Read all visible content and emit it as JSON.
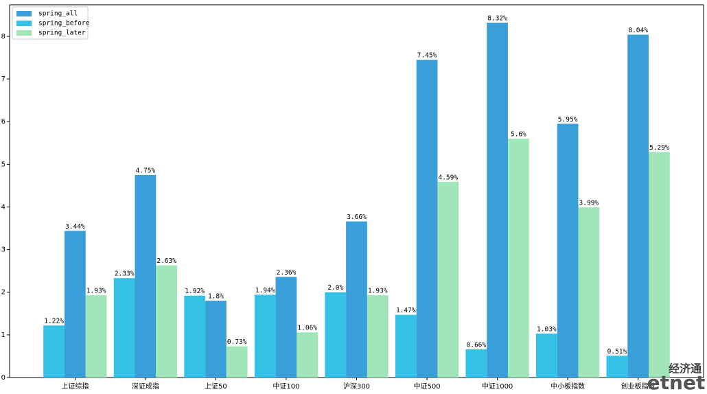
{
  "chart_data": {
    "type": "bar",
    "categories": [
      "上证综指",
      "深证成指",
      "上证50",
      "中证100",
      "沪深300",
      "中证500",
      "中证1000",
      "中小板指数",
      "创业板指数"
    ],
    "series": [
      {
        "name": "spring_all",
        "color": "#3a9fd8",
        "values": [
          3.44,
          4.75,
          1.8,
          2.36,
          3.66,
          7.45,
          8.32,
          5.95,
          8.04
        ],
        "value_labels": [
          "3.44%",
          "4.75%",
          "1.8%",
          "2.36%",
          "3.66%",
          "7.45%",
          "8.32%",
          "5.95%",
          "8.04%"
        ]
      },
      {
        "name": "spring_before",
        "color": "#33c1e6",
        "values": [
          1.22,
          2.33,
          1.92,
          1.94,
          2.0,
          1.47,
          0.66,
          1.03,
          0.51
        ],
        "value_labels": [
          "1.22%",
          "2.33%",
          "1.92%",
          "1.94%",
          "2.0%",
          "1.47%",
          "0.66%",
          "1.03%",
          "0.51%"
        ]
      },
      {
        "name": "spring_later",
        "color": "#a1e6b9",
        "values": [
          1.93,
          2.63,
          0.73,
          1.06,
          1.93,
          4.59,
          5.6,
          3.99,
          5.29
        ],
        "value_labels": [
          "1.93%",
          "2.63%",
          "0.73%",
          "1.06%",
          "1.93%",
          "4.59%",
          "5.6%",
          "3.99%",
          "5.29%"
        ]
      }
    ],
    "bar_order": [
      "spring_before",
      "spring_all",
      "spring_later"
    ],
    "ylim": [
      0,
      8.74
    ],
    "yticks": [
      0,
      1,
      2,
      3,
      4,
      5,
      6,
      7,
      8
    ],
    "legend": "upper left",
    "watermark": [
      "经济通",
      "etnet"
    ]
  }
}
